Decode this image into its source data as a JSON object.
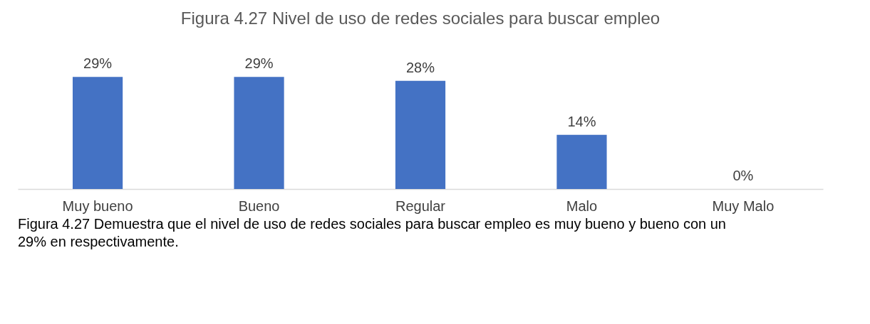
{
  "chart_data": {
    "type": "bar",
    "title": "Figura 4.27 Nivel de uso de redes sociales para buscar empleo",
    "categories": [
      "Muy bueno",
      "Bueno",
      "Regular",
      "Malo",
      "Muy Malo"
    ],
    "values": [
      29,
      29,
      28,
      14,
      0
    ],
    "value_labels": [
      "29%",
      "29%",
      "28%",
      "14%",
      "0%"
    ],
    "color": "#4472c4",
    "grid": false,
    "annotations": [
      "Figura 4.27 Demuestra que el nivel de uso de redes sociales para buscar empleo es muy bueno y bueno con un 29% en respectivamente."
    ]
  }
}
